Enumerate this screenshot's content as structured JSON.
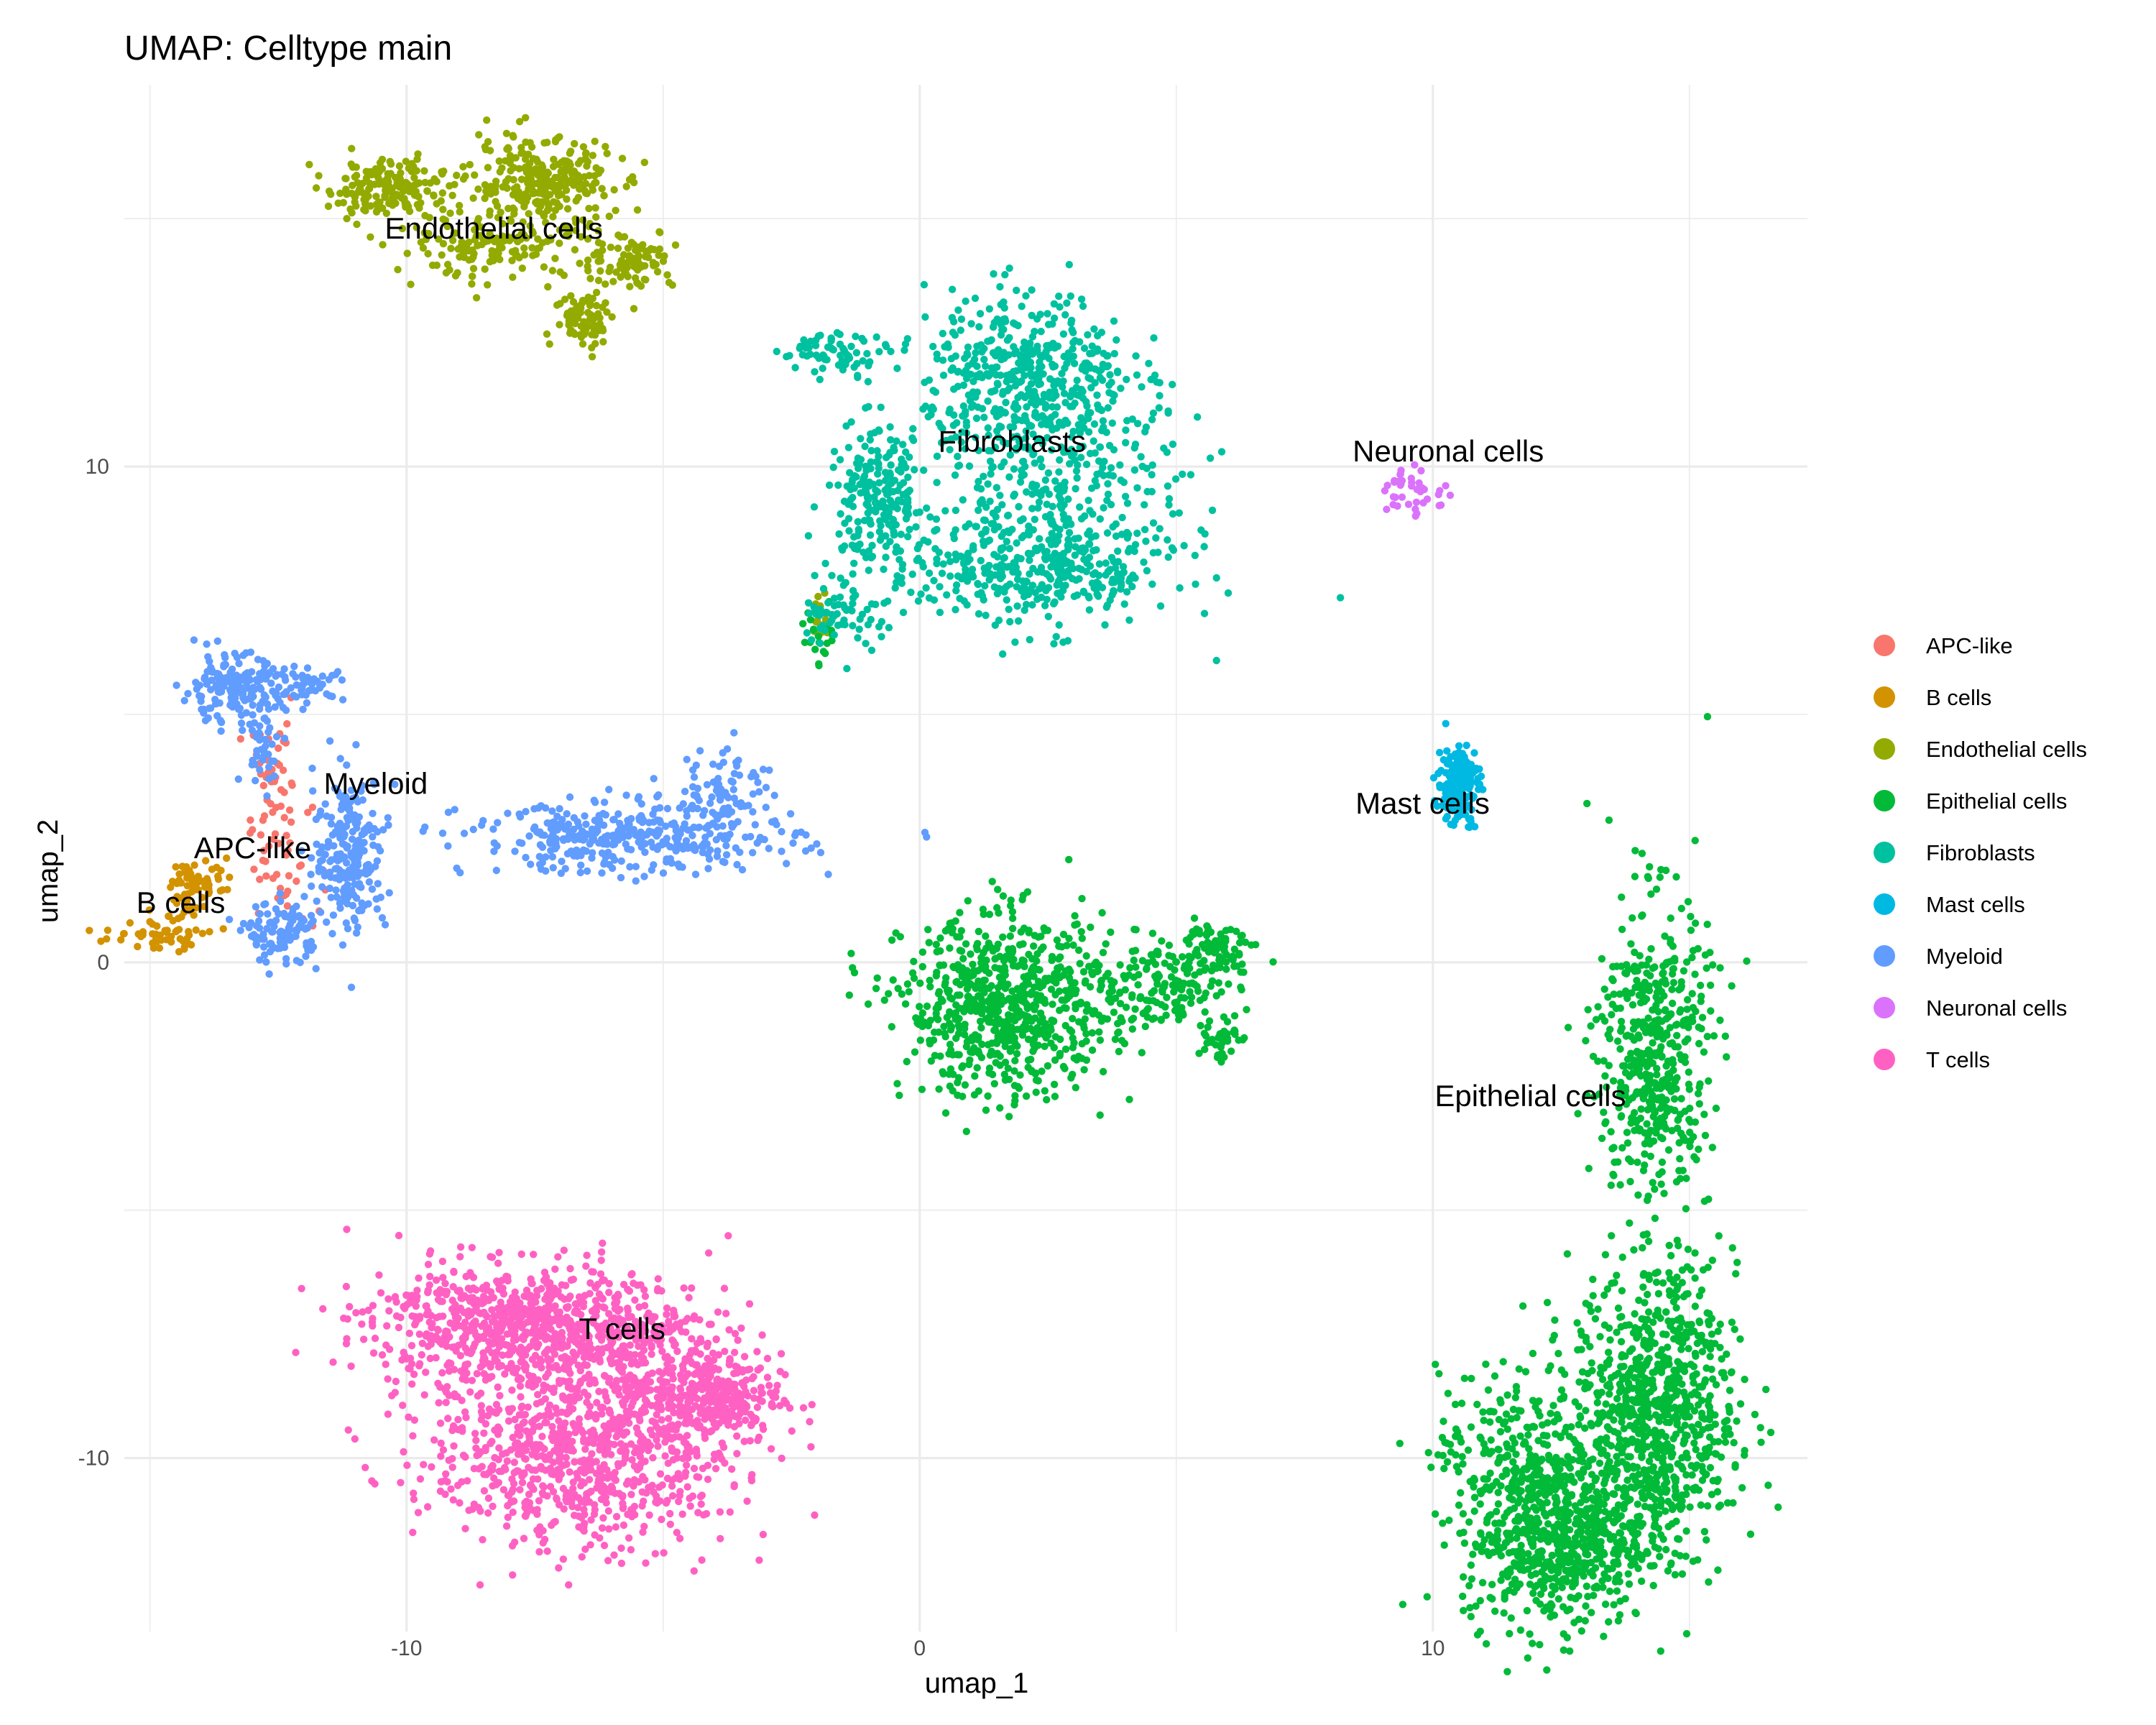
{
  "chart_data": {
    "type": "scatter",
    "title": "UMAP: Celltype main",
    "xlabel": "umap_1",
    "ylabel": "umap_2",
    "xlim": [
      -15.5,
      17.3
    ],
    "ylim": [
      -13.5,
      17.7
    ],
    "x_ticks": [
      -10,
      0,
      10
    ],
    "x_tick_labels": [
      "-10",
      "0",
      "10"
    ],
    "y_ticks": [
      -10,
      0,
      10
    ],
    "y_tick_labels": [
      "-10",
      "0",
      "10"
    ],
    "grid": true,
    "legend_position": "right",
    "series": [
      {
        "name": "APC-like",
        "color": "#F8766D",
        "approx_points": 80,
        "clusters": [
          {
            "x": -12.6,
            "y": 3.7,
            "sx": 0.35,
            "sy": 0.55,
            "n": 40
          },
          {
            "x": -12.4,
            "y": 1.9,
            "sx": 0.35,
            "sy": 0.55,
            "n": 40
          }
        ]
      },
      {
        "name": "B cells",
        "color": "#D39200",
        "approx_points": 120,
        "clusters": [
          {
            "x": -14.9,
            "y": 0.5,
            "sx": 0.5,
            "sy": 0.15,
            "n": 45
          },
          {
            "x": -14.2,
            "y": 1.1,
            "sx": 0.25,
            "sy": 0.35,
            "n": 30
          },
          {
            "x": -14.0,
            "y": 1.7,
            "sx": 0.35,
            "sy": 0.2,
            "n": 45
          }
        ]
      },
      {
        "name": "Endothelial cells",
        "color": "#93AA00",
        "approx_points": 800,
        "clusters": [
          {
            "x": -10.4,
            "y": 15.6,
            "sx": 0.55,
            "sy": 0.3,
            "n": 180
          },
          {
            "x": -7.4,
            "y": 15.7,
            "sx": 0.7,
            "sy": 0.45,
            "n": 280
          },
          {
            "x": -8.3,
            "y": 14.4,
            "sx": 1.0,
            "sy": 0.3,
            "n": 140
          },
          {
            "x": -6.5,
            "y": 13.0,
            "sx": 0.3,
            "sy": 0.3,
            "n": 80
          },
          {
            "x": -5.6,
            "y": 14.2,
            "sx": 0.4,
            "sy": 0.3,
            "n": 90
          },
          {
            "x": -1.9,
            "y": 6.9,
            "sx": 0.15,
            "sy": 0.2,
            "n": 20
          }
        ]
      },
      {
        "name": "Epithelial cells",
        "color": "#00BA38",
        "approx_points": 3400,
        "clusters": [
          {
            "x": 1.7,
            "y": -0.9,
            "sx": 1.0,
            "sy": 0.9,
            "n": 700
          },
          {
            "x": 4.6,
            "y": -0.5,
            "sx": 0.8,
            "sy": 0.45,
            "n": 160
          },
          {
            "x": 5.8,
            "y": 0.3,
            "sx": 0.4,
            "sy": 0.25,
            "n": 80
          },
          {
            "x": 5.8,
            "y": -1.5,
            "sx": 0.2,
            "sy": 0.25,
            "n": 40
          },
          {
            "x": 14.3,
            "y": -1.9,
            "sx": 0.55,
            "sy": 1.6,
            "n": 500
          },
          {
            "x": 14.3,
            "y": -9.1,
            "sx": 0.8,
            "sy": 1.4,
            "n": 850
          },
          {
            "x": 12.4,
            "y": -11.6,
            "sx": 0.9,
            "sy": 0.9,
            "n": 650
          },
          {
            "x": 11.5,
            "y": -9.8,
            "sx": 0.7,
            "sy": 0.8,
            "n": 180
          },
          {
            "x": -1.9,
            "y": 6.6,
            "sx": 0.2,
            "sy": 0.3,
            "n": 20
          }
        ]
      },
      {
        "name": "Fibroblasts",
        "color": "#00C19F",
        "approx_points": 1700,
        "clusters": [
          {
            "x": 2.1,
            "y": 11.9,
            "sx": 1.0,
            "sy": 0.8,
            "n": 420
          },
          {
            "x": -0.8,
            "y": 9.4,
            "sx": 0.5,
            "sy": 0.7,
            "n": 220
          },
          {
            "x": 2.2,
            "y": 7.9,
            "sx": 1.4,
            "sy": 0.6,
            "n": 380
          },
          {
            "x": 2.8,
            "y": 9.8,
            "sx": 1.2,
            "sy": 1.0,
            "n": 300
          },
          {
            "x": -1.6,
            "y": 12.3,
            "sx": 0.55,
            "sy": 0.2,
            "n": 70
          },
          {
            "x": -1.5,
            "y": 7.1,
            "sx": 0.4,
            "sy": 0.4,
            "n": 60
          }
        ]
      },
      {
        "name": "Mast cells",
        "color": "#00B9E3",
        "approx_points": 180,
        "clusters": [
          {
            "x": 10.5,
            "y": 3.6,
            "sx": 0.2,
            "sy": 0.4,
            "n": 180
          }
        ]
      },
      {
        "name": "Myeloid",
        "color": "#619CFF",
        "approx_points": 1300,
        "clusters": [
          {
            "x": -13.4,
            "y": 5.5,
            "sx": 0.5,
            "sy": 0.35,
            "n": 170
          },
          {
            "x": -11.9,
            "y": 5.6,
            "sx": 0.35,
            "sy": 0.15,
            "n": 50
          },
          {
            "x": -12.8,
            "y": 4.4,
            "sx": 0.2,
            "sy": 0.4,
            "n": 40
          },
          {
            "x": -11.1,
            "y": 2.2,
            "sx": 0.35,
            "sy": 0.8,
            "n": 230
          },
          {
            "x": -12.4,
            "y": 0.6,
            "sx": 0.35,
            "sy": 0.3,
            "n": 110
          },
          {
            "x": -5.6,
            "y": 2.5,
            "sx": 1.6,
            "sy": 0.35,
            "n": 380
          },
          {
            "x": -3.8,
            "y": 3.6,
            "sx": 0.45,
            "sy": 0.4,
            "n": 70
          }
        ]
      },
      {
        "name": "Neuronal cells",
        "color": "#DB72FB",
        "approx_points": 40,
        "clusters": [
          {
            "x": 9.6,
            "y": 9.5,
            "sx": 0.4,
            "sy": 0.25,
            "n": 40
          }
        ]
      },
      {
        "name": "T cells",
        "color": "#FF61C3",
        "approx_points": 2100,
        "clusters": [
          {
            "x": -8.1,
            "y": -7.3,
            "sx": 1.3,
            "sy": 0.6,
            "n": 650
          },
          {
            "x": -6.6,
            "y": -9.8,
            "sx": 1.5,
            "sy": 1.0,
            "n": 900
          },
          {
            "x": -4.1,
            "y": -8.8,
            "sx": 0.7,
            "sy": 0.45,
            "n": 320
          },
          {
            "x": -5.7,
            "y": -7.5,
            "sx": 1.0,
            "sy": 0.6,
            "n": 230
          }
        ]
      }
    ],
    "annotations": [
      {
        "text": "Endothelial cells",
        "x": -8.3,
        "y": 14.6
      },
      {
        "text": "Fibroblasts",
        "x": 1.8,
        "y": 10.3
      },
      {
        "text": "Neuronal cells",
        "x": 10.3,
        "y": 10.1
      },
      {
        "text": "Myeloid",
        "x": -10.6,
        "y": 3.4
      },
      {
        "text": "APC-like",
        "x": -13.0,
        "y": 2.1
      },
      {
        "text": "B cells",
        "x": -14.4,
        "y": 1.0
      },
      {
        "text": "Mast cells",
        "x": 9.8,
        "y": 3.0
      },
      {
        "text": "Epithelial cells",
        "x": 11.9,
        "y": -2.9
      },
      {
        "text": "T cells",
        "x": -5.8,
        "y": -7.6
      }
    ]
  }
}
